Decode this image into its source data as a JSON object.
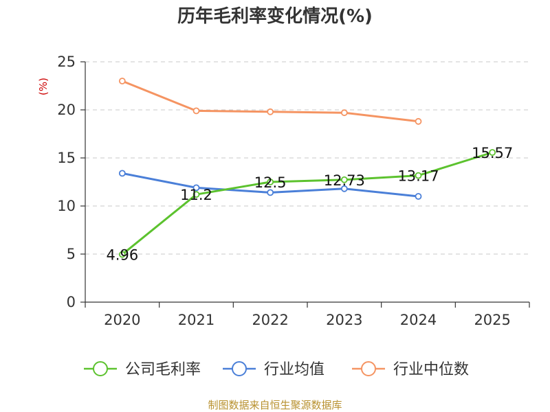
{
  "chart_data": {
    "type": "line",
    "title": "历年毛利率变化情况(%)",
    "ylabel": "(%)",
    "xlabel": "",
    "categories": [
      "2020",
      "2021",
      "2022",
      "2023",
      "2024",
      "2025"
    ],
    "ylim": [
      0,
      25
    ],
    "yticks": [
      0,
      5,
      10,
      15,
      20,
      25
    ],
    "grid": true,
    "legend_position": "bottom",
    "series": [
      {
        "name": "公司毛利率",
        "color": "#5cc22e",
        "values": [
          4.96,
          11.2,
          12.5,
          12.73,
          13.17,
          15.57
        ],
        "labels": [
          "4.96",
          "11.2",
          "12.5",
          "12.73",
          "13.17",
          "15.57"
        ]
      },
      {
        "name": "行业均值",
        "color": "#4a7fd8",
        "values": [
          13.4,
          11.9,
          11.4,
          11.8,
          11.0,
          null
        ]
      },
      {
        "name": "行业中位数",
        "color": "#f59462",
        "values": [
          23.0,
          19.9,
          19.8,
          19.7,
          18.8,
          null
        ]
      }
    ]
  },
  "footer": {
    "source": "制图数据来自恒生聚源数据库"
  }
}
